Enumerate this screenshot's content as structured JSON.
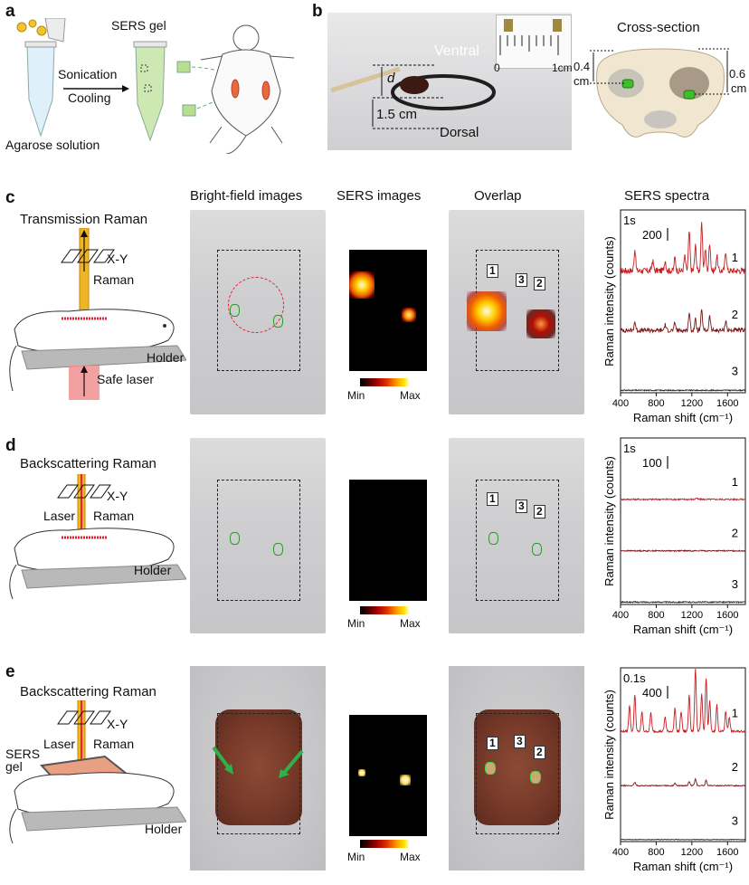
{
  "panel_labels": {
    "a": "a",
    "b": "b",
    "c": "c",
    "d": "d",
    "e": "e"
  },
  "panel_a": {
    "solution_label": "Agarose solution",
    "gel_label": "SERS gel",
    "step1": "Sonication",
    "step2": "Cooling"
  },
  "panel_b": {
    "ventral": "Ventral",
    "dorsal": "Dorsal",
    "d_label": "d",
    "thickness": "1.5 cm",
    "ruler_zero": "0",
    "ruler_cm": "1cm",
    "cross_section_title": "Cross-section",
    "left_depth_value": "0.4",
    "left_depth_unit": "cm",
    "right_depth_value": "0.6",
    "right_depth_unit": "cm"
  },
  "column_headers": {
    "bright": "Bright-field images",
    "sers": "SERS images",
    "overlap": "Overlap",
    "spectra": "SERS spectra"
  },
  "rows": [
    {
      "id": "c",
      "mode": "Transmission Raman",
      "xy": "X-Y",
      "raman": "Raman",
      "laser": "",
      "holder": "Holder",
      "safe_laser": "Safe laser",
      "gel": "",
      "time": "1s",
      "scale": "200",
      "colorbar_min": "Min",
      "colorbar_max": "Max",
      "spot_labels": [
        "1",
        "2",
        "3"
      ]
    },
    {
      "id": "d",
      "mode": "Backscattering Raman",
      "xy": "X-Y",
      "raman": "Raman",
      "laser": "Laser",
      "holder": "Holder",
      "safe_laser": "",
      "gel": "",
      "time": "1s",
      "scale": "100",
      "colorbar_min": "Min",
      "colorbar_max": "Max",
      "spot_labels": [
        "1",
        "2",
        "3"
      ]
    },
    {
      "id": "e",
      "mode": "Backscattering Raman",
      "xy": "X-Y",
      "raman": "Raman",
      "laser": "Laser",
      "holder": "Holder",
      "safe_laser": "",
      "gel": "SERS gel",
      "time": "0.1s",
      "scale": "400",
      "colorbar_min": "Min",
      "colorbar_max": "Max",
      "spot_labels": [
        "1",
        "2",
        "3"
      ]
    }
  ],
  "chart_data": [
    {
      "type": "line",
      "panel": "c",
      "xlabel": "Raman shift (cm⁻¹)",
      "ylabel": "Raman intensity (counts)",
      "xlim": [
        400,
        1800
      ],
      "x_ticks": [
        400,
        800,
        1200,
        1600
      ],
      "series": [
        {
          "name": "1",
          "color": "#c41e22",
          "baseline": 0.32,
          "noise": 0.06,
          "peaks": [
            [
              560,
              0.3
            ],
            [
              760,
              0.14
            ],
            [
              900,
              0.15
            ],
            [
              1010,
              0.18
            ],
            [
              1120,
              0.2
            ],
            [
              1170,
              0.55
            ],
            [
              1240,
              0.35
            ],
            [
              1310,
              0.65
            ],
            [
              1350,
              0.3
            ],
            [
              1400,
              0.4
            ],
            [
              1480,
              0.22
            ],
            [
              1580,
              0.28
            ]
          ]
        },
        {
          "name": "2",
          "color": "#7a1518",
          "baseline": 0.18,
          "noise": 0.04,
          "peaks": [
            [
              560,
              0.12
            ],
            [
              900,
              0.08
            ],
            [
              1010,
              0.1
            ],
            [
              1170,
              0.25
            ],
            [
              1240,
              0.15
            ],
            [
              1310,
              0.28
            ],
            [
              1400,
              0.2
            ],
            [
              1580,
              0.14
            ]
          ]
        },
        {
          "name": "3",
          "color": "#222222",
          "baseline": 0.03,
          "noise": 0.01,
          "peaks": []
        }
      ]
    },
    {
      "type": "line",
      "panel": "d",
      "xlabel": "Raman shift (cm⁻¹)",
      "ylabel": "Raman intensity (counts)",
      "xlim": [
        400,
        1800
      ],
      "x_ticks": [
        400,
        800,
        1200,
        1600
      ],
      "series": [
        {
          "name": "1",
          "color": "#c41e22",
          "baseline": 0.04,
          "noise": 0.015,
          "peaks": [
            [
              1250,
              0.02
            ]
          ]
        },
        {
          "name": "2",
          "color": "#7a1518",
          "baseline": 0.03,
          "noise": 0.012,
          "peaks": []
        },
        {
          "name": "3",
          "color": "#222222",
          "baseline": 0.03,
          "noise": 0.012,
          "peaks": []
        }
      ]
    },
    {
      "type": "line",
      "panel": "e",
      "xlabel": "Raman shift (cm⁻¹)",
      "ylabel": "Raman intensity (counts)",
      "xlim": [
        400,
        1800
      ],
      "x_ticks": [
        400,
        800,
        1200,
        1600
      ],
      "series": [
        {
          "name": "1",
          "color": "#c41e22",
          "baseline": 0.05,
          "noise": 0.02,
          "peaks": [
            [
              500,
              0.4
            ],
            [
              560,
              0.55
            ],
            [
              640,
              0.3
            ],
            [
              740,
              0.28
            ],
            [
              900,
              0.22
            ],
            [
              1010,
              0.35
            ],
            [
              1080,
              0.3
            ],
            [
              1170,
              0.55
            ],
            [
              1240,
              0.95
            ],
            [
              1310,
              0.55
            ],
            [
              1360,
              0.8
            ],
            [
              1400,
              0.45
            ],
            [
              1480,
              0.4
            ],
            [
              1580,
              0.3
            ],
            [
              1620,
              0.22
            ]
          ]
        },
        {
          "name": "2",
          "color": "#7a1518",
          "baseline": 0.02,
          "noise": 0.01,
          "peaks": [
            [
              560,
              0.05
            ],
            [
              1010,
              0.04
            ],
            [
              1170,
              0.06
            ],
            [
              1240,
              0.1
            ],
            [
              1360,
              0.08
            ]
          ]
        },
        {
          "name": "3",
          "color": "#222222",
          "baseline": 0.01,
          "noise": 0.005,
          "peaks": []
        }
      ]
    }
  ]
}
